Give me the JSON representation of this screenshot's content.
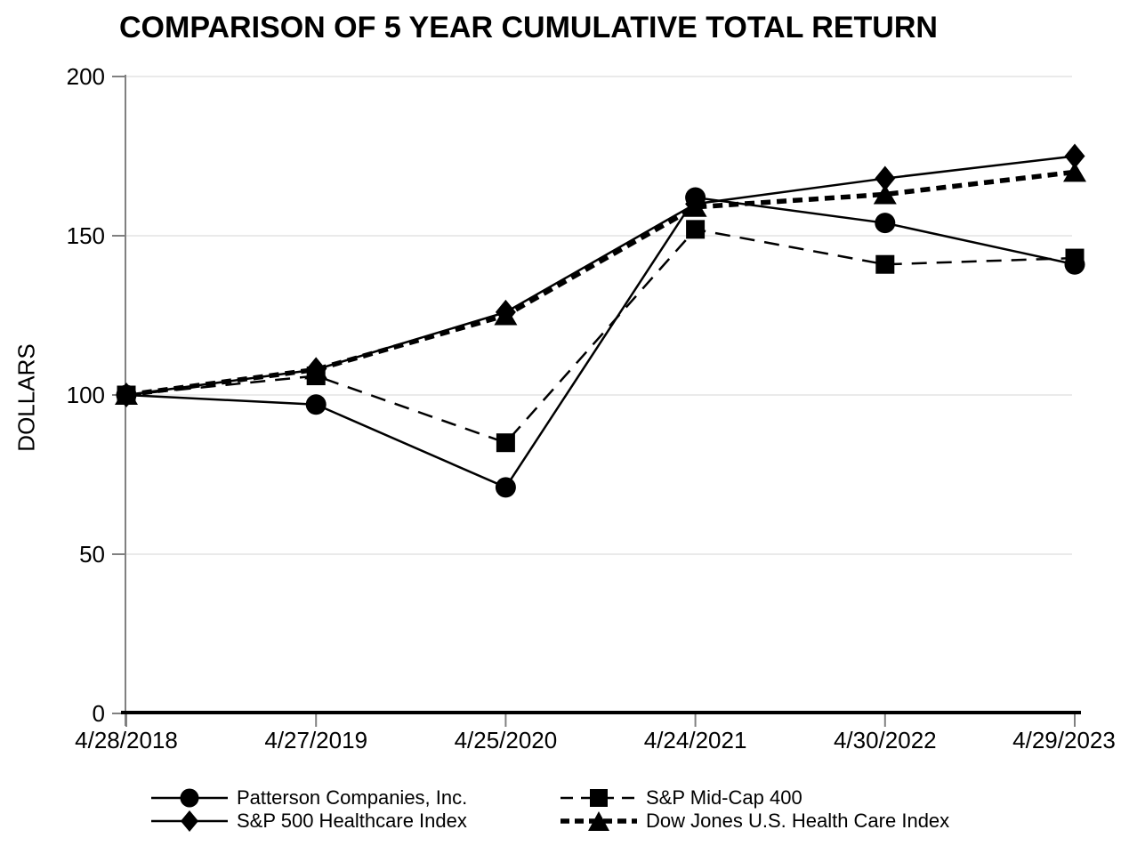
{
  "chart_data": {
    "type": "line",
    "title": "COMPARISON OF 5 YEAR CUMULATIVE TOTAL RETURN",
    "xlabel": "",
    "ylabel": "DOLLARS",
    "ylim": [
      0,
      200
    ],
    "yticks": [
      0,
      50,
      100,
      150,
      200
    ],
    "grid": "horizontal-light",
    "legend_position": "bottom-two-columns",
    "categories": [
      "4/28/2018",
      "4/27/2019",
      "4/25/2020",
      "4/24/2021",
      "4/30/2022",
      "4/29/2023"
    ],
    "series": [
      {
        "name": "Patterson Companies, Inc.",
        "marker": "circle",
        "line": "solid",
        "color": "#000000",
        "values": [
          100,
          97,
          71,
          162,
          154,
          141
        ]
      },
      {
        "name": "S&P Mid-Cap 400",
        "marker": "square",
        "line": "dashed",
        "color": "#000000",
        "values": [
          100,
          106,
          85,
          152,
          141,
          143
        ]
      },
      {
        "name": "S&P 500 Healthcare Index",
        "marker": "diamond",
        "line": "solid",
        "color": "#000000",
        "values": [
          100,
          108,
          126,
          160,
          168,
          175
        ]
      },
      {
        "name": "Dow Jones U.S. Health Care Index",
        "marker": "triangle",
        "line": "bold-dashed",
        "color": "#000000",
        "values": [
          100,
          108,
          125,
          159,
          163,
          170
        ]
      }
    ]
  },
  "colors": {
    "ink": "#000000",
    "axis": "#808080",
    "grid": "#EAEAEA",
    "background": "#FFFFFF"
  }
}
